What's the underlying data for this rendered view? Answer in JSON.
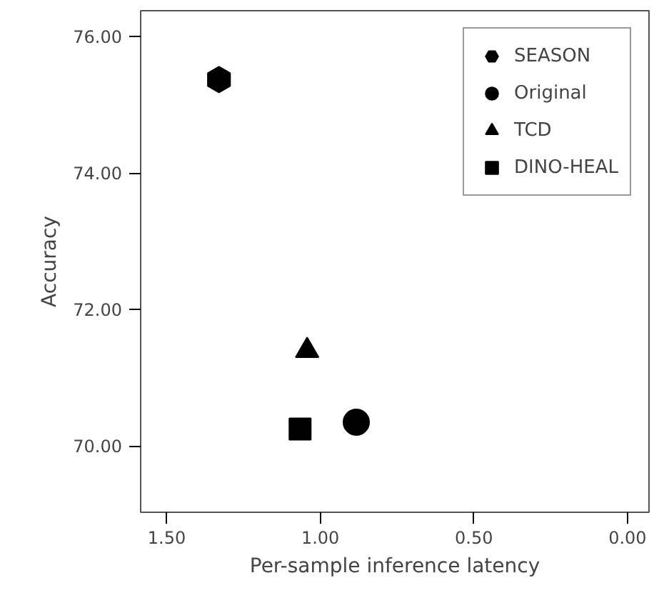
{
  "chart_data": {
    "type": "scatter",
    "xlabel": "Per-sample inference latency",
    "ylabel": "Accuracy",
    "xlim": [
      1.585,
      -0.07
    ],
    "ylim": [
      69.03,
      76.38
    ],
    "xticks": [
      {
        "value": 1.5,
        "label": "1.50"
      },
      {
        "value": 1.0,
        "label": "1.00"
      },
      {
        "value": 0.5,
        "label": "0.50"
      },
      {
        "value": 0.0,
        "label": "0.00"
      }
    ],
    "yticks": [
      {
        "value": 70,
        "label": "70.00"
      },
      {
        "value": 72,
        "label": "72.00"
      },
      {
        "value": 74,
        "label": "74.00"
      },
      {
        "value": 76,
        "label": "76.00"
      }
    ],
    "grid": false,
    "legend": "top right",
    "series": [
      {
        "name": "SEASON",
        "color": "#000000",
        "x": [
          1.33
        ],
        "values": [
          75.37
        ]
      },
      {
        "name": "Original",
        "color": "#000000",
        "marker": "circle",
        "x": [
          0.883
        ],
        "values": [
          70.35
        ]
      },
      {
        "name": "TCD",
        "color": "#000000",
        "marker": "triangle",
        "x": [
          1.043
        ],
        "values": [
          71.4
        ]
      },
      {
        "name": "DINO-HEAL",
        "color": "#000000",
        "marker": "square",
        "x": [
          1.066
        ],
        "values": [
          70.25
        ]
      }
    ]
  }
}
